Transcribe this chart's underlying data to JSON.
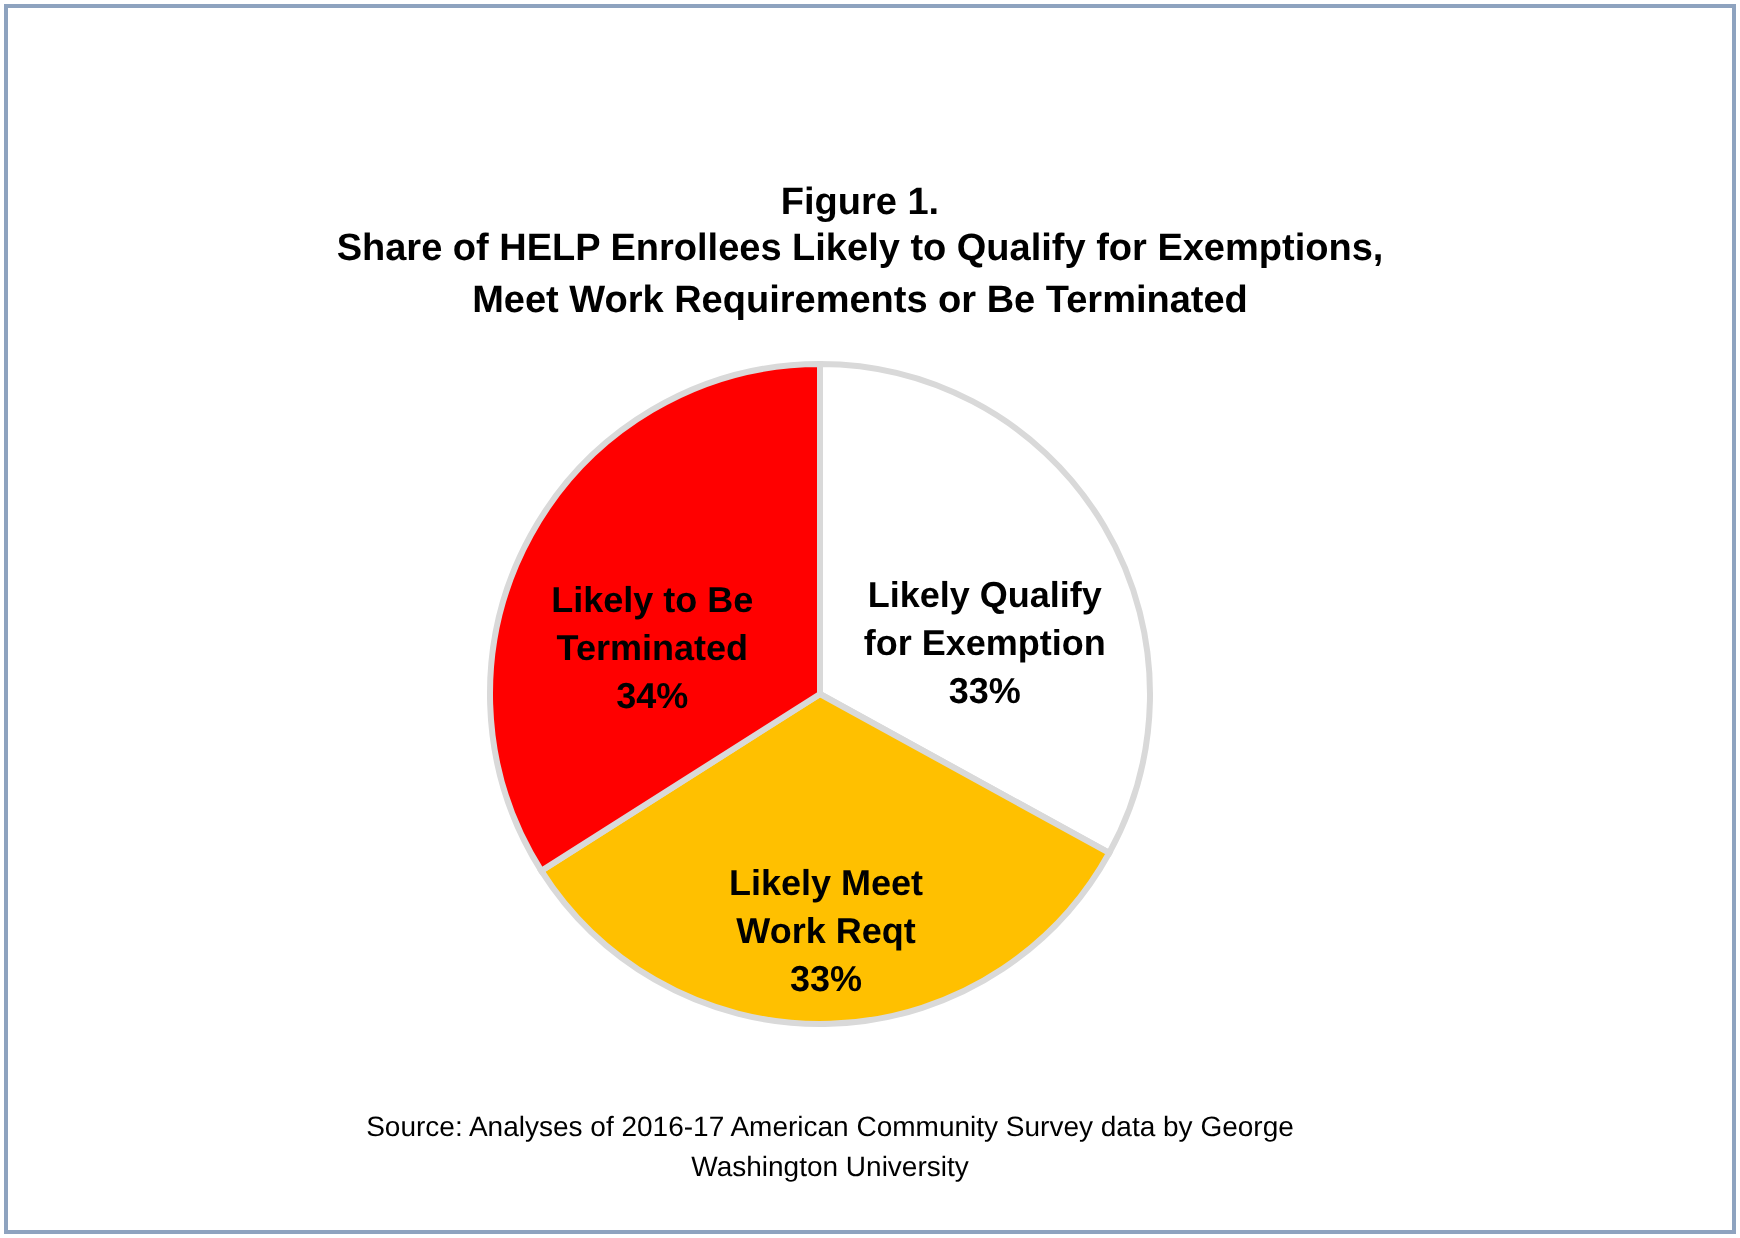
{
  "chart_data": {
    "type": "pie",
    "title": "Figure 1.",
    "subtitle": "Share of HELP Enrollees Likely to Qualify for Exemptions, Meet Work Requirements or Be Terminated",
    "categories": [
      "Likely Qualify for Exemption",
      "Likely Meet Work Reqt",
      "Likely to Be Terminated"
    ],
    "values": [
      33,
      33,
      34
    ],
    "colors": [
      "#ffffff",
      "#ffc000",
      "#ff0000"
    ],
    "value_labels": [
      "33%",
      "33%",
      "34%"
    ],
    "legend": false,
    "annotations": [
      "Source: Analyses of 2016-17 American Community Survey data by George Washington University"
    ]
  }
}
